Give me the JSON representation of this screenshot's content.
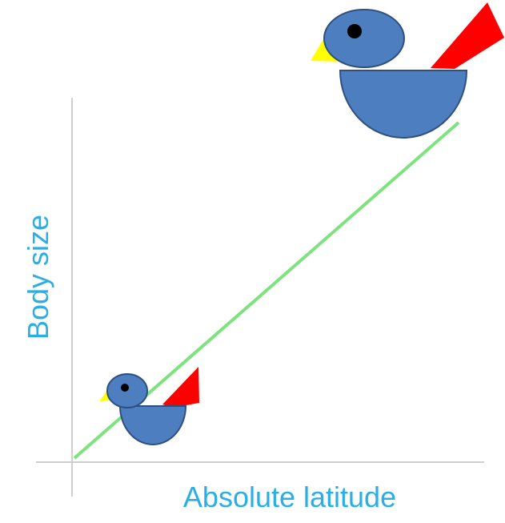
{
  "axes": {
    "x_label": "Absolute latitude",
    "y_label": "Body size"
  },
  "colors": {
    "axis_line": "#cfcfcf",
    "trend_line": "#7ee27e",
    "label_text": "#29aee8",
    "bird_body": "#4d7ebf",
    "bird_outline": "#2f4f7f",
    "bird_beak": "#ffff00",
    "bird_tail": "#ff0000",
    "bird_eye": "#000000"
  },
  "icons": {
    "small_bird": "small-bird-icon",
    "large_bird": "large-bird-icon"
  }
}
